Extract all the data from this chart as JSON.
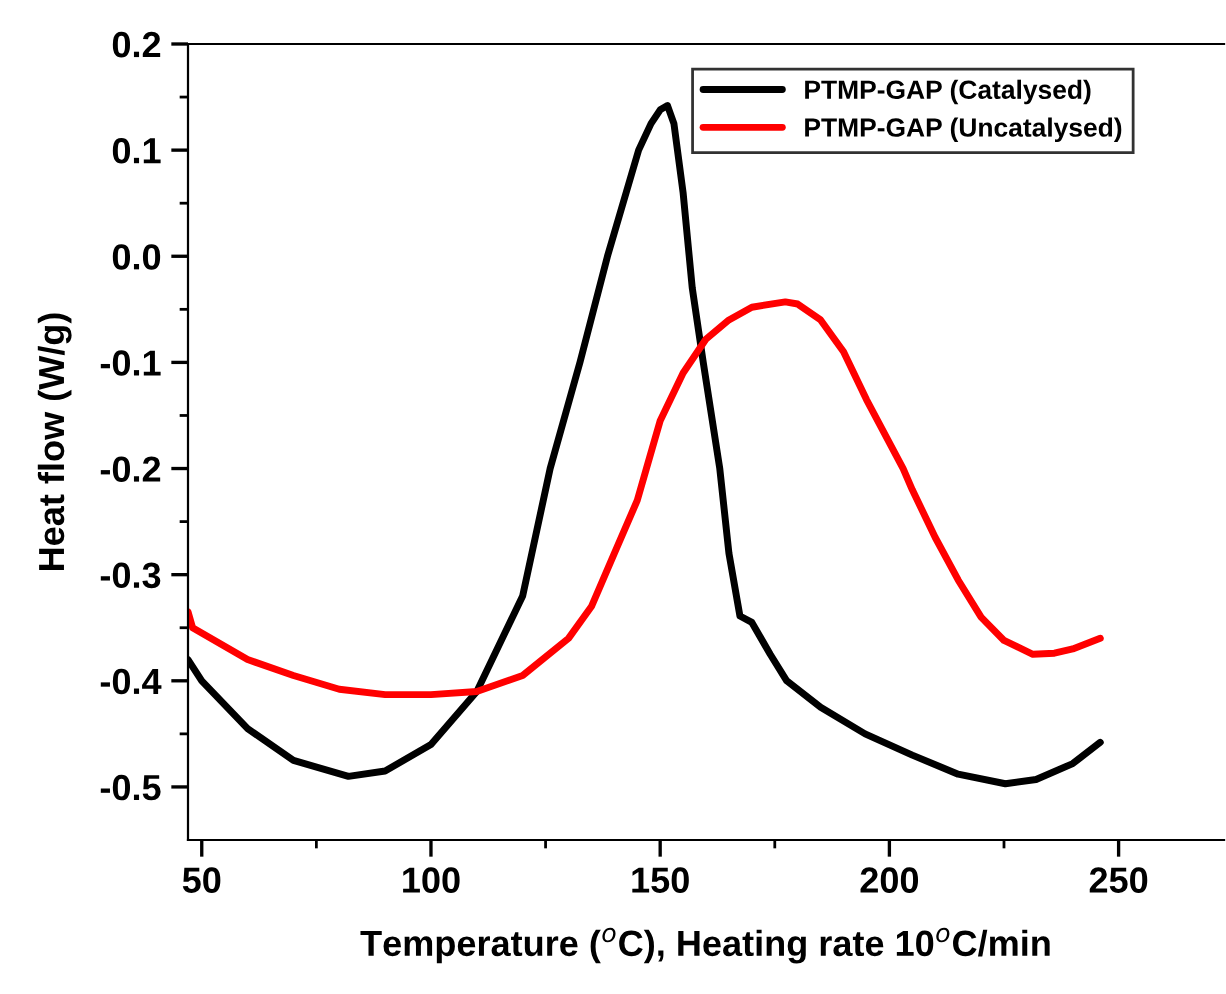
{
  "chart_data": {
    "type": "line",
    "xlabel": "Temperature ($^{o}$C), Heating rate 10$^{o}$C/min",
    "ylabel": "Heat flow (W/g)",
    "xlim": [
      47,
      273
    ],
    "ylim": [
      -0.55,
      0.2
    ],
    "xticks": [
      50,
      100,
      150,
      200,
      250
    ],
    "yticks": [
      {
        "value": -0.5,
        "label": "-0.5"
      },
      {
        "value": -0.4,
        "label": "-0.4"
      },
      {
        "value": -0.3,
        "label": "-0.3"
      },
      {
        "value": -0.2,
        "label": "-0.2"
      },
      {
        "value": -0.1,
        "label": "-0.1"
      },
      {
        "value": 0,
        "label": "0.0"
      },
      {
        "value": 0.1,
        "label": "0.1"
      },
      {
        "value": 0.2,
        "label": "0.2"
      }
    ],
    "legend": "top right",
    "grid": false,
    "marker": "none",
    "line_style": "solid",
    "series": [
      {
        "name": "PTMP-GAP (Catalysed)",
        "color": "#000000",
        "x": [
          47,
          50,
          60,
          70,
          82,
          90,
          100,
          110,
          120,
          126,
          132.5,
          138.5,
          145.3,
          148,
          150,
          151.6,
          153,
          155,
          157,
          159.4,
          163,
          165,
          167.4,
          170,
          174,
          177.6,
          185,
          194.7,
          205,
          215,
          225.3,
          232,
          240,
          246
        ],
        "values": [
          -0.38,
          -0.4,
          -0.445,
          -0.475,
          -0.49,
          -0.485,
          -0.46,
          -0.41,
          -0.32,
          -0.2,
          -0.1,
          0.0,
          0.1,
          0.125,
          0.138,
          0.142,
          0.125,
          0.06,
          -0.03,
          -0.1,
          -0.2,
          -0.28,
          -0.339,
          -0.345,
          -0.375,
          -0.4,
          -0.425,
          -0.45,
          -0.47,
          -0.488,
          -0.497,
          -0.493,
          -0.478,
          -0.458
        ]
      },
      {
        "name": "PTMP-GAP (Uncatalysed)",
        "color": "#ff0000",
        "x": [
          47,
          48,
          60,
          70,
          80,
          90,
          100,
          110,
          120,
          130,
          135,
          140,
          145,
          147,
          150,
          155,
          160,
          165,
          170,
          177.3,
          180,
          185,
          190,
          195,
          203,
          205,
          210,
          215,
          220,
          225,
          231.3,
          236,
          240,
          246
        ],
        "values": [
          -0.335,
          -0.35,
          -0.38,
          -0.395,
          -0.408,
          -0.413,
          -0.413,
          -0.41,
          -0.395,
          -0.36,
          -0.33,
          -0.28,
          -0.23,
          -0.2,
          -0.155,
          -0.11,
          -0.078,
          -0.06,
          -0.048,
          -0.043,
          -0.045,
          -0.06,
          -0.09,
          -0.135,
          -0.2,
          -0.22,
          -0.265,
          -0.305,
          -0.34,
          -0.362,
          -0.375,
          -0.374,
          -0.37,
          -0.36
        ]
      }
    ]
  }
}
